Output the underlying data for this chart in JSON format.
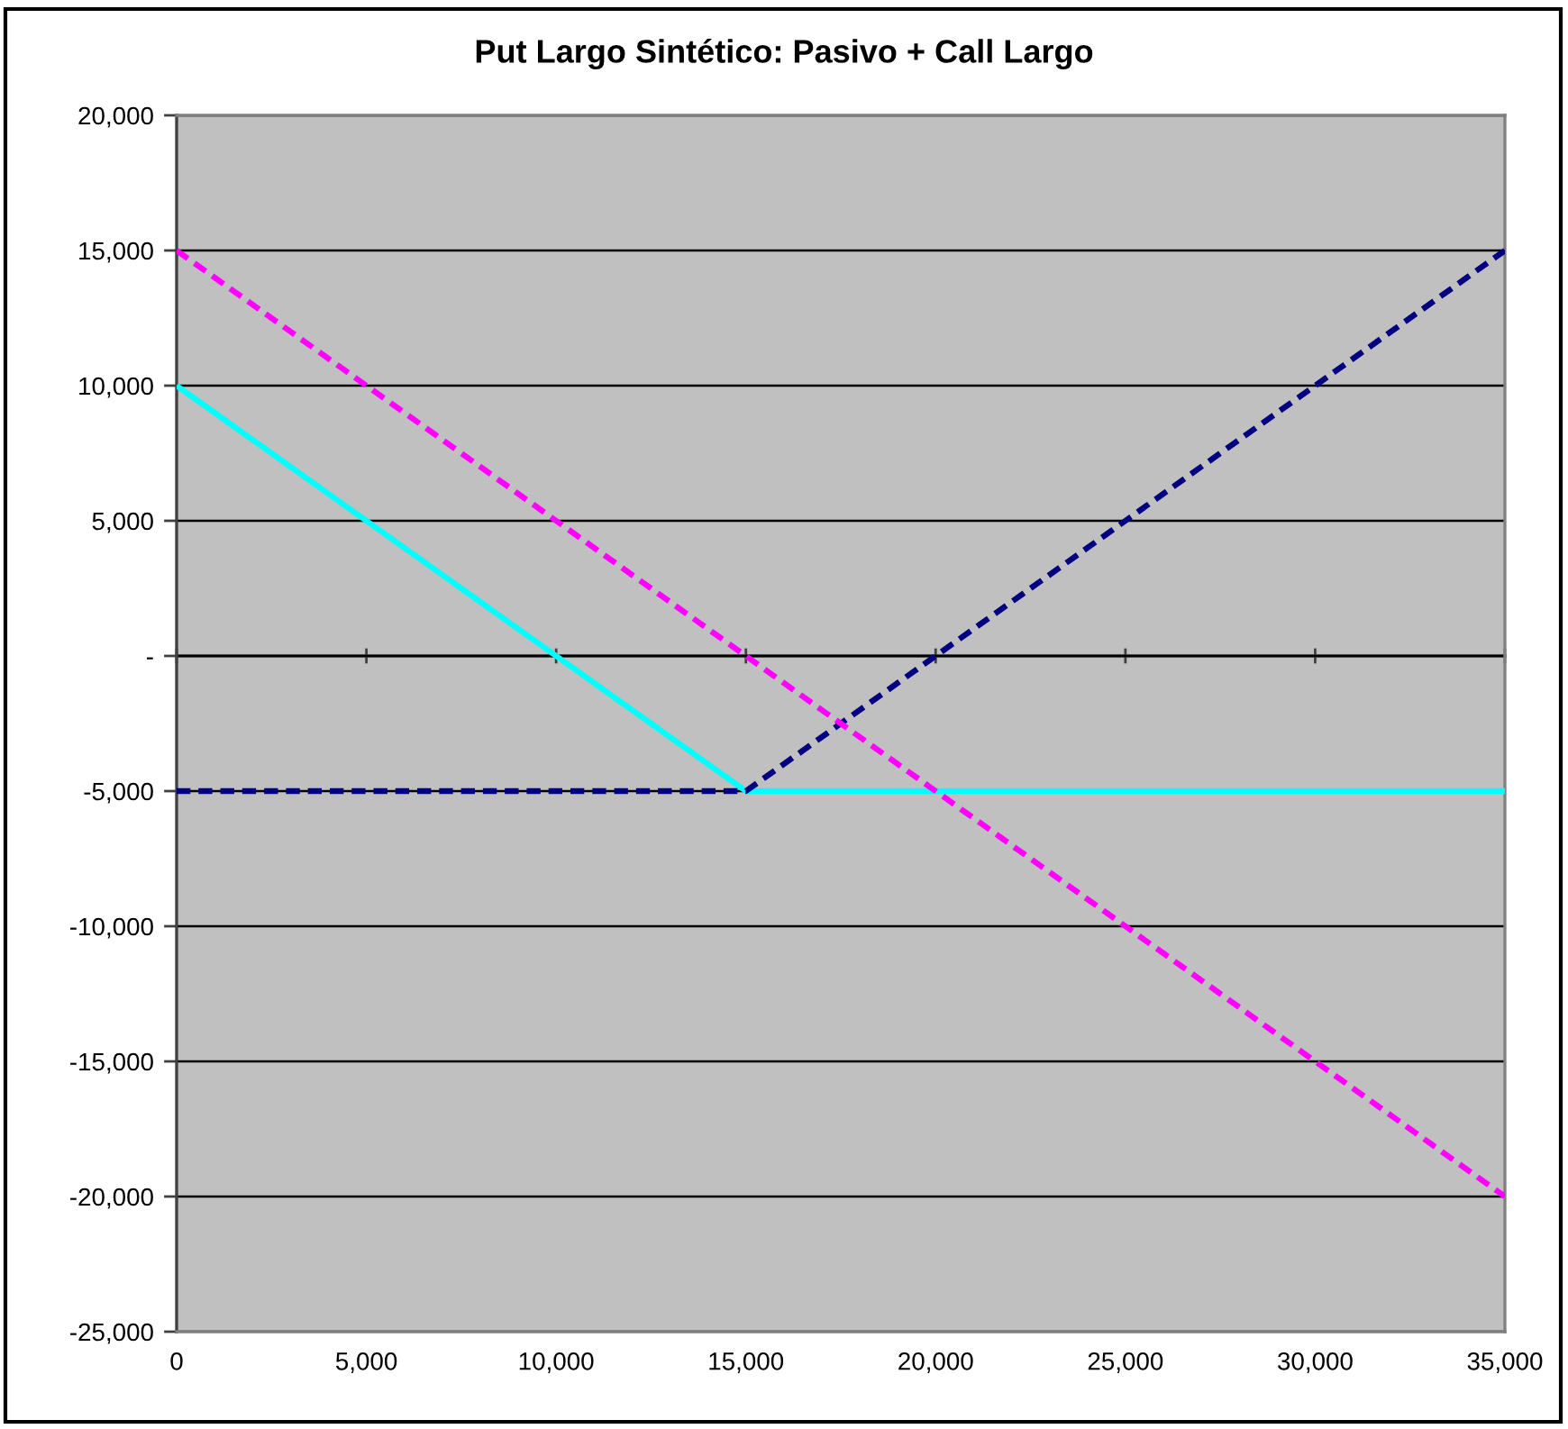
{
  "chart_data": {
    "type": "line",
    "title": "Put Largo Sintético: Pasivo + Call Largo",
    "x": [
      0,
      5000,
      10000,
      15000,
      20000,
      25000,
      30000,
      35000
    ],
    "series": [
      {
        "color": "#00ffff",
        "line_style": "solid",
        "values": [
          10000,
          5000,
          0,
          -5000,
          -5000,
          -5000,
          -5000,
          -5000
        ]
      },
      {
        "color": "#000080",
        "line_style": "dashed",
        "values": [
          -5000,
          -5000,
          -5000,
          -5000,
          0,
          5000,
          10000,
          15000
        ]
      },
      {
        "color": "#ff00ff",
        "line_style": "dashed",
        "values": [
          15000,
          10000,
          5000,
          0,
          -5000,
          -10000,
          -15000,
          -20000
        ]
      }
    ],
    "xlim": [
      0,
      35000
    ],
    "ylim": [
      -25000,
      20000
    ],
    "xticks": [
      0,
      {
        "value": 5000,
        "label": "5,000"
      },
      {
        "value": 10000,
        "label": "10,000"
      },
      {
        "value": 15000,
        "label": "15,000"
      },
      {
        "value": 20000,
        "label": "20,000"
      },
      {
        "value": 25000,
        "label": "25,000"
      },
      {
        "value": 30000,
        "label": "30,000"
      },
      {
        "value": 35000,
        "label": "35,000"
      }
    ],
    "yticks": [
      {
        "value": -25000,
        "label": "-25,000"
      },
      {
        "value": -20000,
        "label": "-20,000"
      },
      {
        "value": -15000,
        "label": "-15,000"
      },
      {
        "value": -10000,
        "label": "-10,000"
      },
      {
        "value": -5000,
        "label": "-5,000"
      },
      {
        "value": 0,
        "label": "-"
      },
      {
        "value": 5000,
        "label": "5,000"
      },
      {
        "value": 10000,
        "label": "10,000"
      },
      {
        "value": 15000,
        "label": "15,000"
      },
      {
        "value": 20000,
        "label": "20,000"
      }
    ],
    "grid": "y"
  }
}
